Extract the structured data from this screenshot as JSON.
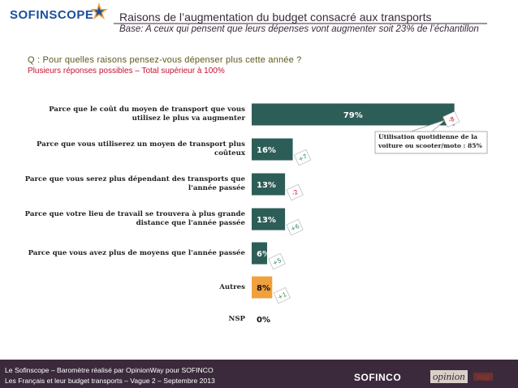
{
  "header": {
    "logo": "SOFINSCOPE",
    "title": "Raisons de l’augmentation du budget consacré aux transports",
    "base": "Base: A ceux qui pensent que leurs dépenses vont augmenter soit 23% de l’échantillon"
  },
  "question": "Q : Pour quelles raisons pensez-vous dépenser plus cette année ?",
  "note": "Plusieurs réponses possibles – Total supérieur à 100%",
  "chart_data": {
    "type": "bar",
    "orientation": "horizontal",
    "categories": [
      "Parce que le coût du moyen de transport que vous utilisez le plus va augmenter",
      "Parce que vous utiliserez un moyen de transport plus coûteux",
      "Parce que vous serez plus dépendant des transports que l'année passée",
      "Parce que votre lieu de travail se trouvera à plus grande distance que l'année passée",
      "Parce que vous avez plus de moyens que l'année passée",
      "Autres",
      "NSP"
    ],
    "values": [
      79,
      16,
      13,
      13,
      6,
      8,
      0
    ],
    "value_labels": [
      "79%",
      "16%",
      "13%",
      "13%",
      "6%",
      "8%",
      "0%"
    ],
    "colors": [
      "#2d5d57",
      "#2d5d57",
      "#2d5d57",
      "#2d5d57",
      "#2d5d57",
      "#f0a03c",
      "#2d5d57"
    ],
    "changes": [
      "-8",
      "+7",
      "-2",
      "+6",
      "+5",
      "+1",
      null
    ],
    "annotation": "Utilisation quotidienne de la voiture ou scooter/moto : 85%"
  },
  "footer": {
    "line1": "Le Sofinscope – Baromètre réalisé par OpinionWay pour SOFINCO",
    "line2": "Les Français et leur budget transports – Vague 2 – Septembre 2013",
    "brand": "SOFINCO",
    "partner": "opinion",
    "partner2": "way"
  }
}
